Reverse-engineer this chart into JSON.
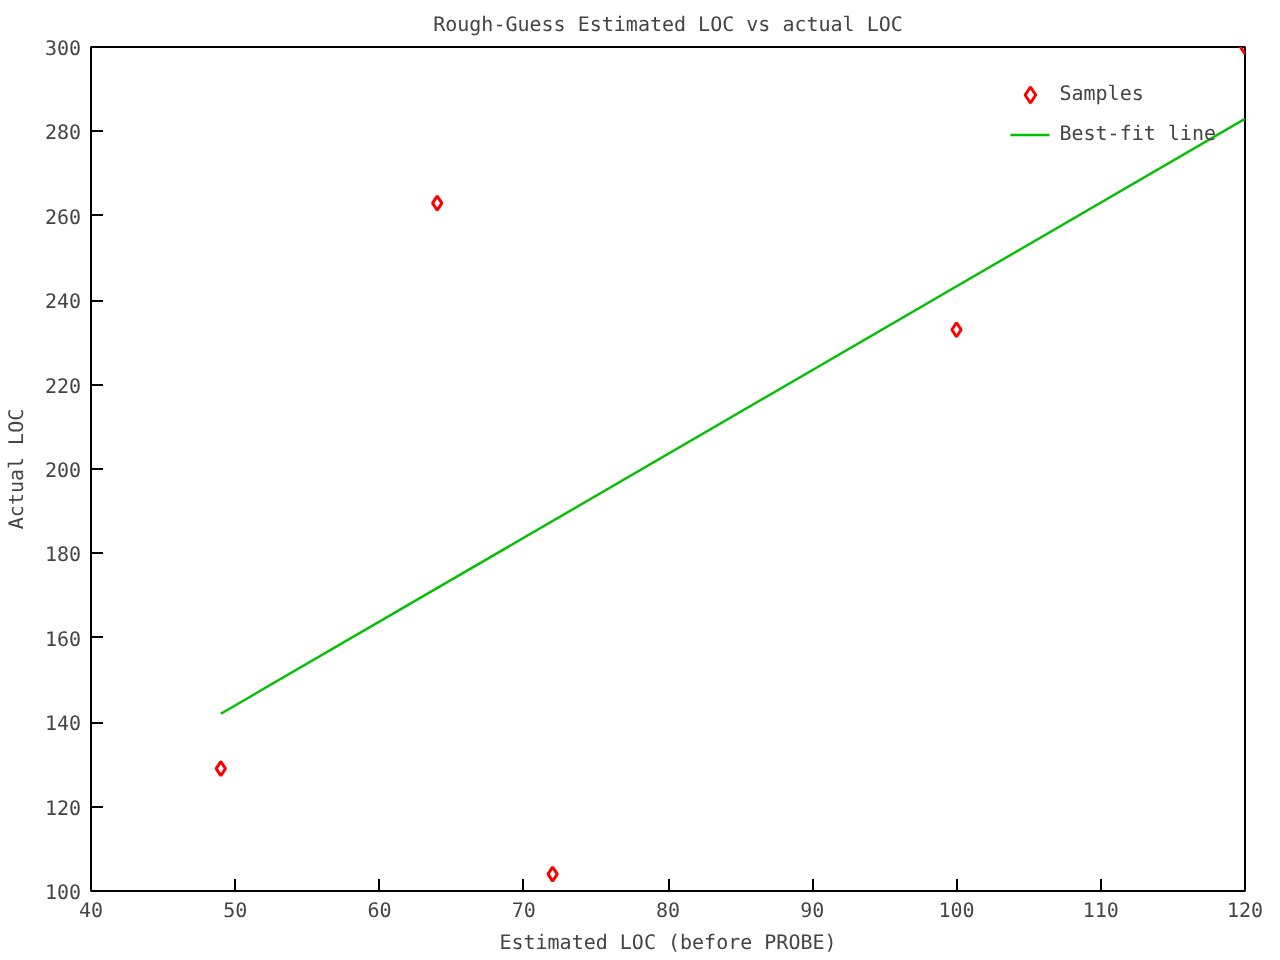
{
  "chart_data": {
    "type": "scatter",
    "title": "Rough-Guess Estimated LOC vs actual LOC",
    "xlabel": "Estimated LOC (before PROBE)",
    "ylabel": "Actual LOC",
    "xlim": [
      40,
      120
    ],
    "xticks": [
      40,
      50,
      60,
      70,
      80,
      90,
      100,
      110,
      120
    ],
    "ylim": [
      100,
      300
    ],
    "yticks": [
      100,
      120,
      140,
      160,
      180,
      200,
      220,
      240,
      260,
      280,
      300
    ],
    "grid": false,
    "legend": "top right",
    "series": [
      {
        "name": "Samples",
        "marker": "diamond",
        "color": "#ff0000",
        "x": [
          49,
          64,
          72,
          100,
          120
        ],
        "values": [
          129,
          263,
          104,
          233,
          300
        ]
      },
      {
        "name": "Best-fit line",
        "type": "line",
        "color": "#00c000",
        "x": [
          49,
          120
        ],
        "values": [
          142,
          283
        ]
      }
    ]
  }
}
